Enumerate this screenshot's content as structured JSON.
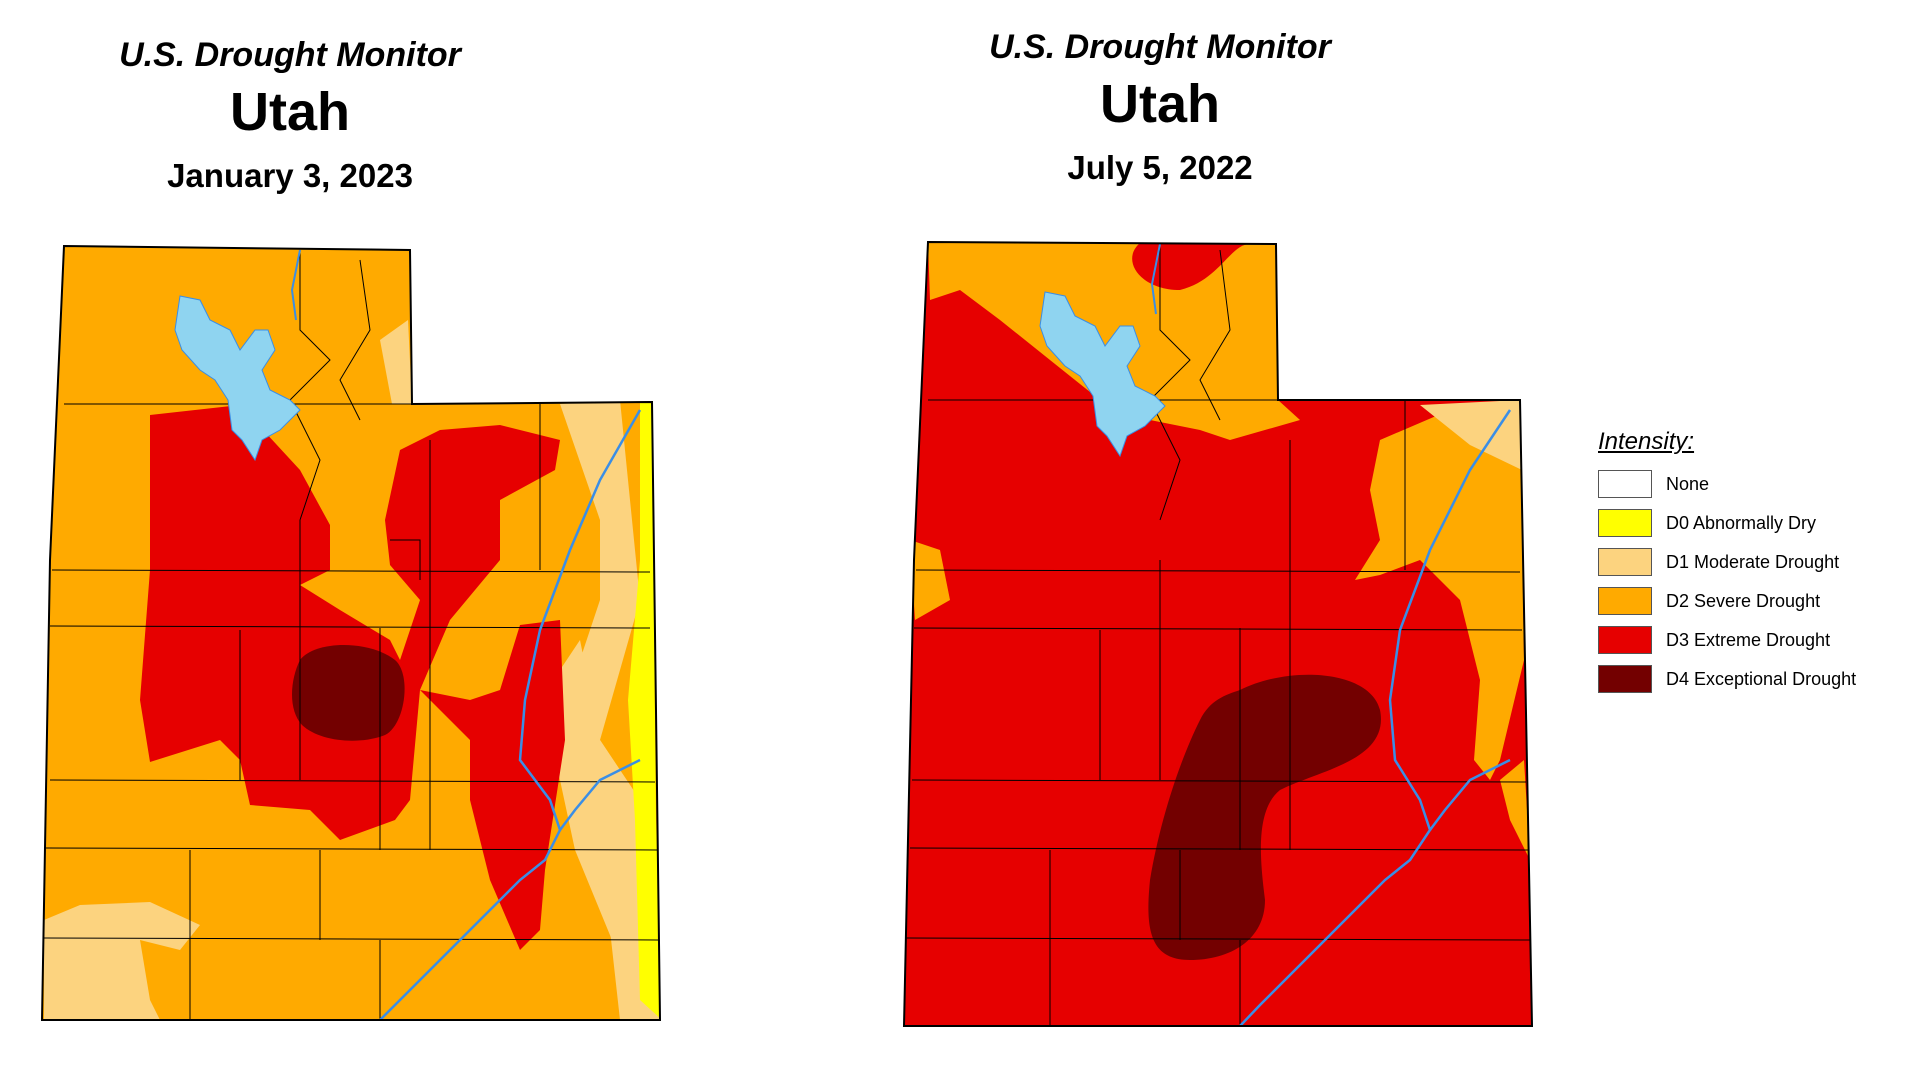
{
  "maps": [
    {
      "title": "U.S. Drought Monitor",
      "state": "Utah",
      "date": "January 3, 2023"
    },
    {
      "title": "U.S. Drought Monitor",
      "state": "Utah",
      "date": "July 5, 2022"
    }
  ],
  "legend": {
    "title": "Intensity:",
    "items": [
      {
        "label": "None",
        "color": "#ffffff"
      },
      {
        "label": "D0 Abnormally Dry",
        "color": "#ffff00"
      },
      {
        "label": "D1 Moderate Drought",
        "color": "#fcd37f"
      },
      {
        "label": "D2 Severe Drought",
        "color": "#ffaa00"
      },
      {
        "label": "D3 Extreme Drought",
        "color": "#e60000"
      },
      {
        "label": "D4 Exceptional Drought",
        "color": "#730000"
      }
    ]
  },
  "colors": {
    "water": "#8fd4f0",
    "river": "#3a8ee6",
    "border": "#000000"
  }
}
